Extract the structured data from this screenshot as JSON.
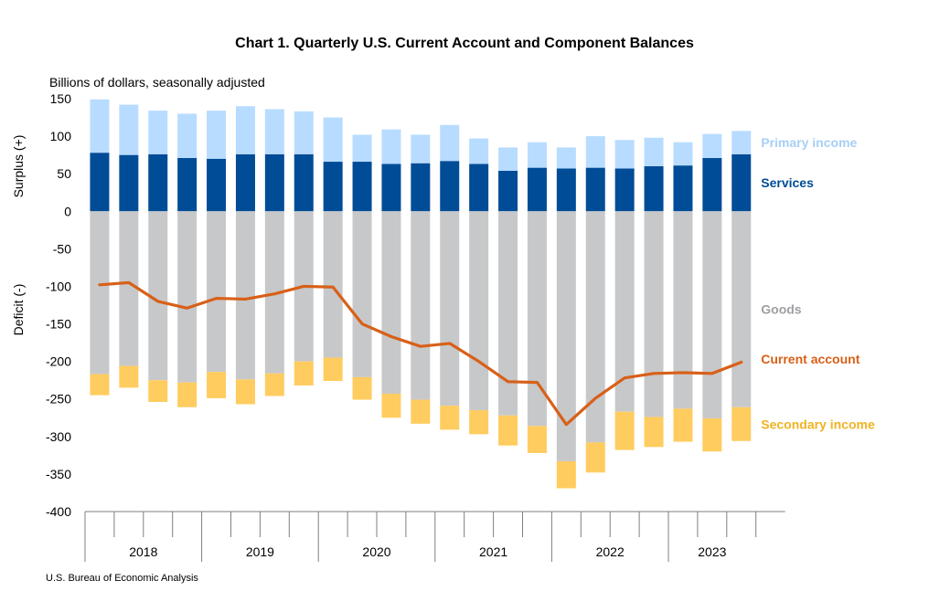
{
  "chart_data": {
    "type": "bar",
    "title": "Chart 1. Quarterly U.S. Current Account and Component Balances",
    "units_label": "Billions of dollars, seasonally adjusted",
    "ylabel_top": "Surplus (+)",
    "ylabel_bottom": "Deficit (-)",
    "ylim": [
      -400,
      150
    ],
    "yticks": [
      150,
      100,
      50,
      0,
      -50,
      -100,
      -150,
      -200,
      -250,
      -300,
      -350,
      -400
    ],
    "stacked": true,
    "quarters_per_year": 4,
    "years": [
      "2018",
      "2019",
      "2020",
      "2021",
      "2022",
      "2023"
    ],
    "series": [
      {
        "name": "Services",
        "type": "bar",
        "color": "#004c97",
        "label_color": "#004c97",
        "values": [
          78,
          75,
          76,
          71,
          70,
          76,
          76,
          76,
          66,
          66,
          63,
          64,
          67,
          63,
          54,
          58,
          57,
          58,
          57,
          60,
          61,
          71,
          76
        ]
      },
      {
        "name": "Primary income",
        "type": "bar",
        "color": "#b8dcff",
        "label_color": "#a8cff5",
        "values": [
          71,
          67,
          58,
          59,
          64,
          64,
          60,
          57,
          59,
          36,
          46,
          38,
          48,
          34,
          31,
          34,
          28,
          42,
          38,
          38,
          31,
          32,
          31
        ]
      },
      {
        "name": "Goods",
        "type": "bar",
        "color": "#c7c8ca",
        "label_color": "#9d9fa2",
        "values": [
          -217,
          -206,
          -225,
          -228,
          -214,
          -224,
          -216,
          -200,
          -195,
          -221,
          -243,
          -251,
          -259,
          -265,
          -272,
          -286,
          -333,
          -308,
          -267,
          -274,
          -263,
          -276,
          -261
        ]
      },
      {
        "name": "Secondary income",
        "type": "bar",
        "color": "#ffcc5f",
        "label_color": "#f0b323",
        "values": [
          -28,
          -29,
          -29,
          -33,
          -35,
          -33,
          -30,
          -32,
          -31,
          -30,
          -32,
          -32,
          -32,
          -32,
          -40,
          -36,
          -36,
          -40,
          -51,
          -40,
          -44,
          -44,
          -45
        ]
      },
      {
        "name": "Current account",
        "type": "line",
        "color": "#d86018",
        "label_color": "#d86018",
        "values": [
          -98,
          -95,
          -120,
          -129,
          -116,
          -117,
          -110,
          -100,
          -101,
          -150,
          -167,
          -180,
          -176,
          -200,
          -227,
          -228,
          -284,
          -249,
          -222,
          -216,
          -215,
          -216,
          -201
        ]
      }
    ]
  },
  "footer": {
    "source": "U.S. Bureau of Economic Analysis"
  }
}
